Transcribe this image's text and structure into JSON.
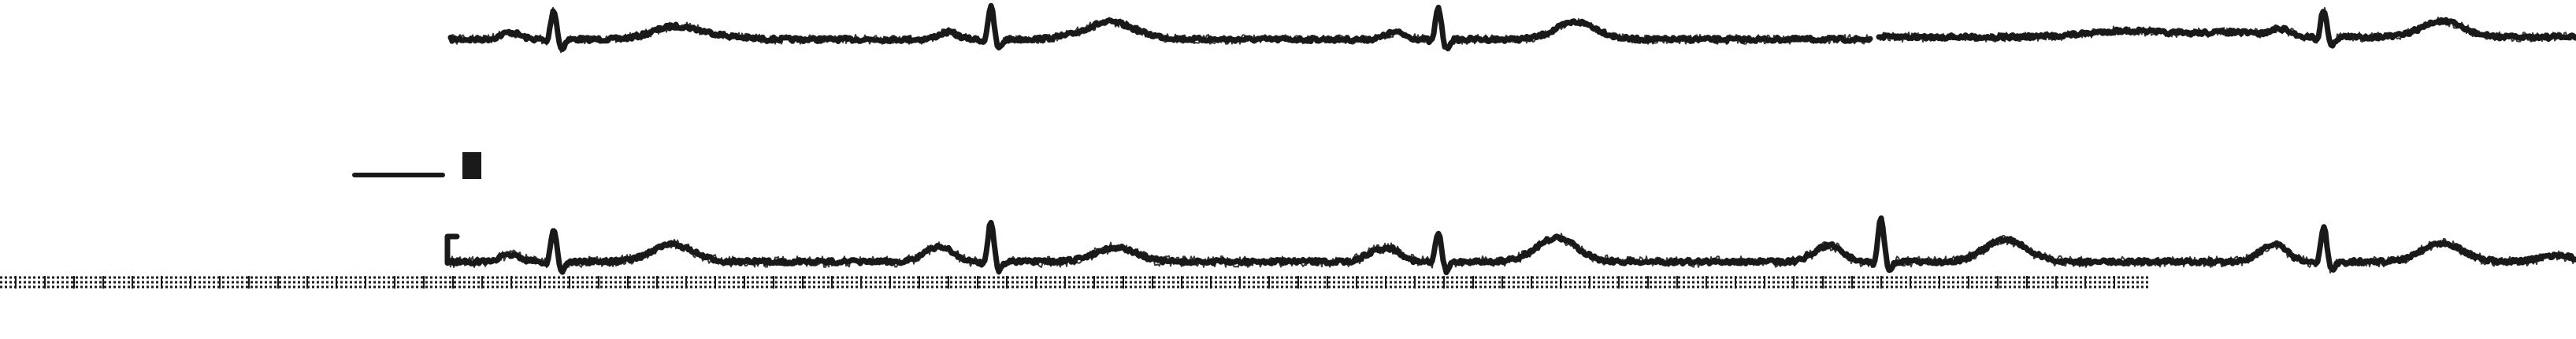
{
  "colors": {
    "background": "#ffffff",
    "trace": "#1a1a1a"
  },
  "strips": [
    {
      "name": "upper-ecg-strip"
    },
    {
      "name": "lower-ecg-strip"
    }
  ],
  "calibration_marker": {
    "shown": true
  },
  "baseline_dotted_line": {
    "shown": true
  }
}
